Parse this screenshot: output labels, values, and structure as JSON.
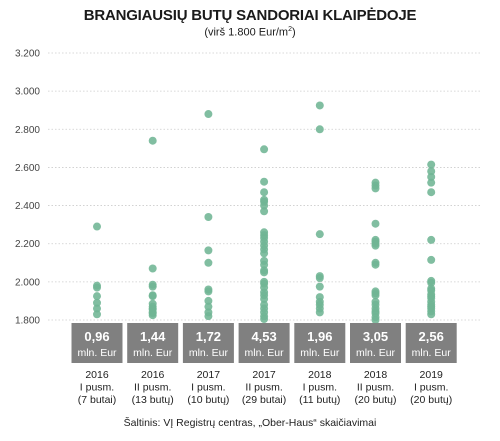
{
  "title": "BRANGIAUSIŲ BUTŲ SANDORIAI KLAIPĖDOJE",
  "subtitle_main": "(virš 1.800 Eur/m",
  "subtitle_sup": "2",
  "subtitle_end": ")",
  "source": "Šaltinis: VĮ Registrų centras, „Ober-Haus“ skaičiavimai",
  "colors": {
    "dot": "#6fb594",
    "box": "#808080",
    "grid": "#cccccc"
  },
  "chart_data": {
    "type": "scatter",
    "title": "BRANGIAUSIŲ BUTŲ SANDORIAI KLAIPĖDOJE",
    "subtitle": "(virš 1.800 Eur/m2)",
    "ylim": [
      1800,
      3200
    ],
    "yticks": [
      "1.800",
      "2.000",
      "2.200",
      "2.400",
      "2.600",
      "2.800",
      "3.000",
      "3.200"
    ],
    "ytick_values": [
      1800,
      2000,
      2200,
      2400,
      2600,
      2800,
      3000,
      3200
    ],
    "grid": "horizontal",
    "categories": [
      {
        "year": "2016",
        "period": "I pusm.",
        "count": "(7 butai)",
        "total": "0,96",
        "unit": "mln. Eur",
        "points": [
          2290,
          1980,
          1970,
          1925,
          1890,
          1860,
          1830
        ]
      },
      {
        "year": "2016",
        "period": "II pusm.",
        "count": "(13 butų)",
        "total": "1,44",
        "unit": "mln. Eur",
        "points": [
          2740,
          2070,
          1985,
          1975,
          1930,
          1925,
          1885,
          1870,
          1860,
          1855,
          1840,
          1835,
          1825
        ]
      },
      {
        "year": "2017",
        "period": "I pusm.",
        "count": "(10 butų)",
        "total": "1,72",
        "unit": "mln. Eur",
        "points": [
          2880,
          2340,
          2165,
          2100,
          1960,
          1950,
          1900,
          1870,
          1840,
          1820
        ]
      },
      {
        "year": "2017",
        "period": "II pusm.",
        "count": "(29 butai)",
        "total": "4,53",
        "unit": "mln. Eur",
        "points": [
          2695,
          2525,
          2470,
          2430,
          2420,
          2400,
          2370,
          2260,
          2245,
          2230,
          2210,
          2190,
          2170,
          2150,
          2110,
          2090,
          2060,
          2050,
          2000,
          1990,
          1970,
          1945,
          1930,
          1910,
          1880,
          1860,
          1840,
          1820,
          1805
        ]
      },
      {
        "year": "2018",
        "period": "I pusm.",
        "count": "(11 butų)",
        "total": "1,96",
        "unit": "mln. Eur",
        "points": [
          2925,
          2800,
          2250,
          2030,
          2020,
          1975,
          1920,
          1895,
          1880,
          1860,
          1840
        ]
      },
      {
        "year": "2018",
        "period": "II pusm.",
        "count": "(20 butų)",
        "total": "3,05",
        "unit": "mln. Eur",
        "points": [
          2520,
          2505,
          2490,
          2305,
          2220,
          2210,
          2200,
          2190,
          2100,
          2090,
          1950,
          1940,
          1930,
          1895,
          1880,
          1860,
          1845,
          1835,
          1815,
          1800
        ]
      },
      {
        "year": "2019",
        "period": "I pusm.",
        "count": "(20 butų)",
        "total": "2,56",
        "unit": "mln. Eur",
        "points": [
          2615,
          2580,
          2550,
          2520,
          2470,
          2220,
          2115,
          2005,
          1995,
          1965,
          1955,
          1935,
          1925,
          1915,
          1895,
          1880,
          1870,
          1860,
          1845,
          1830
        ]
      }
    ]
  }
}
